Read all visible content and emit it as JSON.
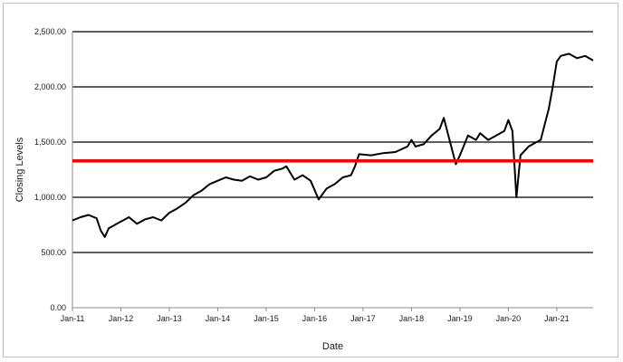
{
  "chart_data": {
    "type": "line",
    "xlabel": "Date",
    "ylabel": "Closing Levels",
    "ylim": [
      0,
      2500
    ],
    "x_ticks": [
      "Jan-11",
      "Jan-12",
      "Jan-13",
      "Jan-14",
      "Jan-15",
      "Jan-16",
      "Jan-17",
      "Jan-18",
      "Jan-19",
      "Jan-20",
      "Jan-21"
    ],
    "y_ticks": [
      "0.00",
      "500.00",
      "1,000.00",
      "1,500.00",
      "2,000.00",
      "2,500.00"
    ],
    "y_tick_values": [
      0,
      500,
      1000,
      1500,
      2000,
      2500
    ],
    "grid": "horizontal",
    "series": [
      {
        "role": "closing",
        "color": "#000000",
        "x": [
          "2011-01",
          "2011-03",
          "2011-05",
          "2011-07",
          "2011-08",
          "2011-09",
          "2011-10",
          "2011-12",
          "2012-03",
          "2012-05",
          "2012-07",
          "2012-09",
          "2012-11",
          "2013-01",
          "2013-03",
          "2013-05",
          "2013-07",
          "2013-09",
          "2013-11",
          "2014-01",
          "2014-03",
          "2014-05",
          "2014-07",
          "2014-09",
          "2014-11",
          "2015-01",
          "2015-03",
          "2015-05",
          "2015-06",
          "2015-08",
          "2015-10",
          "2015-12",
          "2016-02",
          "2016-04",
          "2016-06",
          "2016-08",
          "2016-10",
          "2016-11",
          "2016-12",
          "2017-03",
          "2017-06",
          "2017-09",
          "2017-12",
          "2018-01",
          "2018-02",
          "2018-04",
          "2018-06",
          "2018-08",
          "2018-09",
          "2018-10",
          "2018-12",
          "2019-01",
          "2019-03",
          "2019-05",
          "2019-06",
          "2019-08",
          "2019-10",
          "2019-12",
          "2020-01",
          "2020-02",
          "2020-03",
          "2020-04",
          "2020-06",
          "2020-08",
          "2020-09",
          "2020-11",
          "2020-12",
          "2021-01",
          "2021-02",
          "2021-04",
          "2021-06",
          "2021-08",
          "2021-10"
        ],
        "values": [
          790,
          820,
          840,
          810,
          700,
          640,
          720,
          760,
          820,
          760,
          800,
          820,
          790,
          860,
          900,
          950,
          1020,
          1060,
          1120,
          1150,
          1180,
          1160,
          1150,
          1190,
          1160,
          1180,
          1240,
          1260,
          1280,
          1160,
          1200,
          1150,
          980,
          1080,
          1120,
          1180,
          1200,
          1280,
          1390,
          1380,
          1400,
          1410,
          1460,
          1520,
          1460,
          1480,
          1560,
          1620,
          1720,
          1580,
          1300,
          1380,
          1560,
          1520,
          1580,
          1520,
          1560,
          1600,
          1700,
          1600,
          1000,
          1380,
          1460,
          1500,
          1520,
          1800,
          2000,
          2230,
          2280,
          2300,
          2260,
          2280,
          2240
        ]
      },
      {
        "role": "reference",
        "color": "#ff0000",
        "x": [
          "2011-01",
          "2021-10"
        ],
        "values": [
          1330,
          1330
        ]
      }
    ]
  }
}
